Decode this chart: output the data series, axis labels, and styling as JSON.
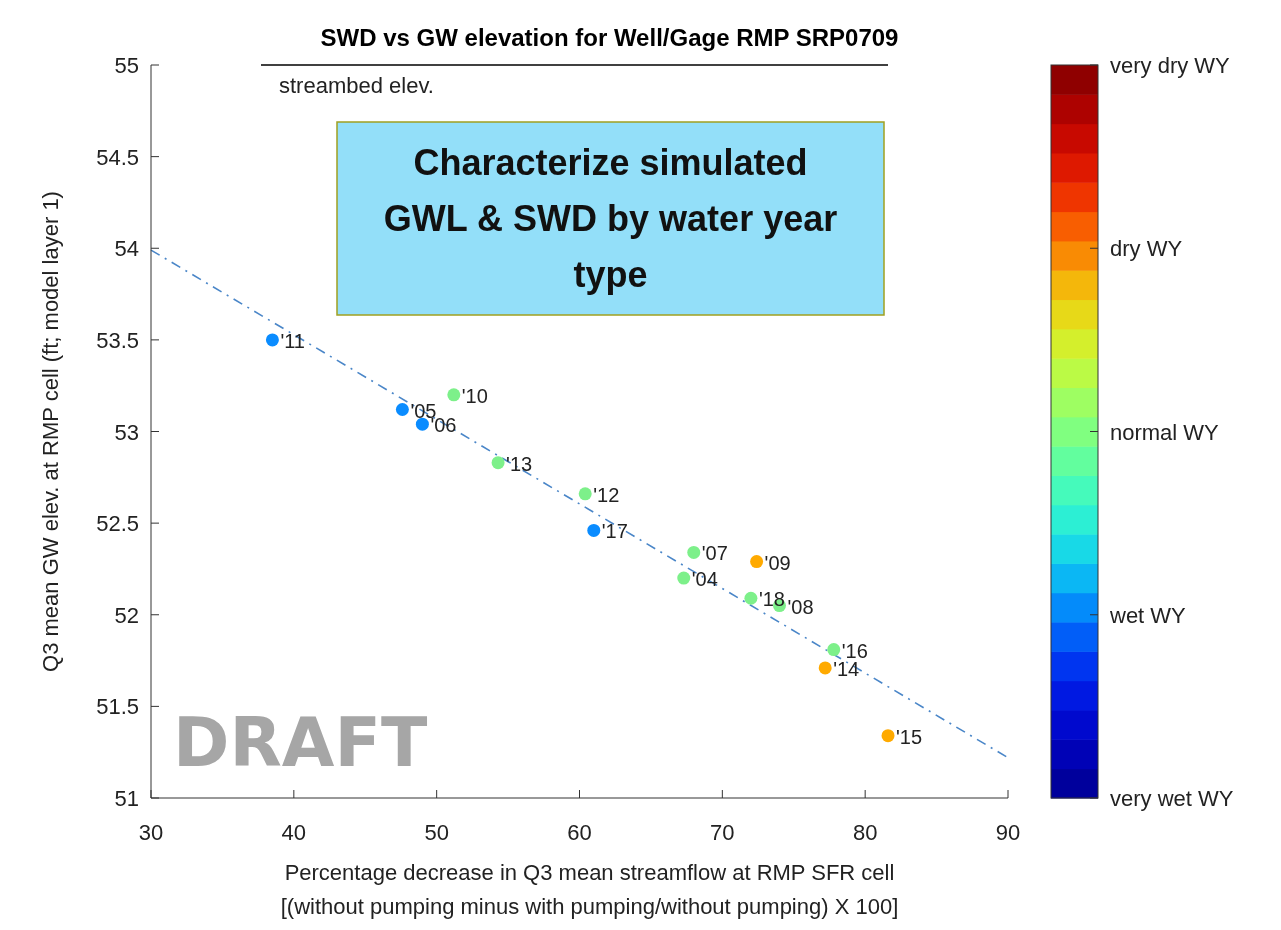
{
  "chart_data": {
    "type": "scatter",
    "title": "SWD vs GW elevation for Well/Gage RMP SRP0709",
    "xlabel": "Percentage decrease in Q3 mean streamflow at RMP SFR cell\n[(without pumping minus with pumping/without pumping) X 100]",
    "ylabel": "Q3 mean GW elev. at RMP cell (ft; model layer 1)",
    "xlim": [
      30,
      90
    ],
    "xticks": [
      30,
      40,
      50,
      60,
      70,
      80,
      90
    ],
    "ylim": [
      51,
      55
    ],
    "yticks": [
      51,
      51.5,
      52,
      52.5,
      53,
      53.5,
      54,
      54.5,
      55
    ],
    "clim": [
      1,
      5
    ],
    "cticks": [
      {
        "value": 1,
        "label": "very wet WY"
      },
      {
        "value": 2,
        "label": "wet WY"
      },
      {
        "value": 3,
        "label": "normal WY"
      },
      {
        "value": 4,
        "label": "dry WY"
      },
      {
        "value": 5,
        "label": "very dry WY"
      }
    ],
    "marker": "circle",
    "grid": false,
    "series": [
      {
        "type": "line",
        "name": "streambed elev.",
        "color": "#000000",
        "x": [
          37.7,
          81.6
        ],
        "values": [
          55,
          55
        ],
        "line_style": "solid",
        "marker": "none"
      },
      {
        "type": "line",
        "color": "#4a86c8",
        "x": [
          30,
          90
        ],
        "values": [
          53.99,
          51.22
        ],
        "line_style": "dashed",
        "marker": "none"
      },
      {
        "x": [
          38.5,
          47.6,
          49.0,
          51.2,
          54.3,
          60.4,
          61.0,
          68.0,
          72.4,
          67.3,
          72.0,
          74.0,
          77.8,
          77.2,
          81.6
        ],
        "values": [
          53.5,
          53.12,
          53.04,
          53.2,
          52.83,
          52.66,
          52.46,
          52.34,
          52.29,
          52.2,
          52.09,
          52.05,
          51.81,
          51.71,
          51.34
        ],
        "colors": [
          "#0a8cff",
          "#0a8cff",
          "#0a8cff",
          "#7df08a",
          "#7df08a",
          "#7df08a",
          "#0a8cff",
          "#7df08a",
          "#ffaa00",
          "#7df08a",
          "#7df08a",
          "#7df08a",
          "#7df08a",
          "#ffaa00",
          "#ffaa00"
        ]
      }
    ],
    "annotations": [
      {
        "text": "'11",
        "x": 38.5,
        "y": 53.5
      },
      {
        "text": "'05",
        "x": 47.6,
        "y": 53.12
      },
      {
        "text": "'06",
        "x": 49.0,
        "y": 53.04
      },
      {
        "text": "'10",
        "x": 51.2,
        "y": 53.2
      },
      {
        "text": "'13",
        "x": 54.3,
        "y": 52.83
      },
      {
        "text": "'12",
        "x": 60.4,
        "y": 52.66
      },
      {
        "text": "'17",
        "x": 61.0,
        "y": 52.46
      },
      {
        "text": "'07",
        "x": 68.0,
        "y": 52.34
      },
      {
        "text": "'09",
        "x": 72.4,
        "y": 52.29
      },
      {
        "text": "'04",
        "x": 67.3,
        "y": 52.2
      },
      {
        "text": "'18",
        "x": 72.0,
        "y": 52.09
      },
      {
        "text": "'08",
        "x": 74.0,
        "y": 52.05
      },
      {
        "text": "'16",
        "x": 77.8,
        "y": 51.81
      },
      {
        "text": "'14",
        "x": 77.2,
        "y": 51.71
      },
      {
        "text": "'15",
        "x": 81.6,
        "y": 51.34
      },
      "Characterize simulated GWL & SWD by water year type",
      "DRAFT"
    ]
  }
}
